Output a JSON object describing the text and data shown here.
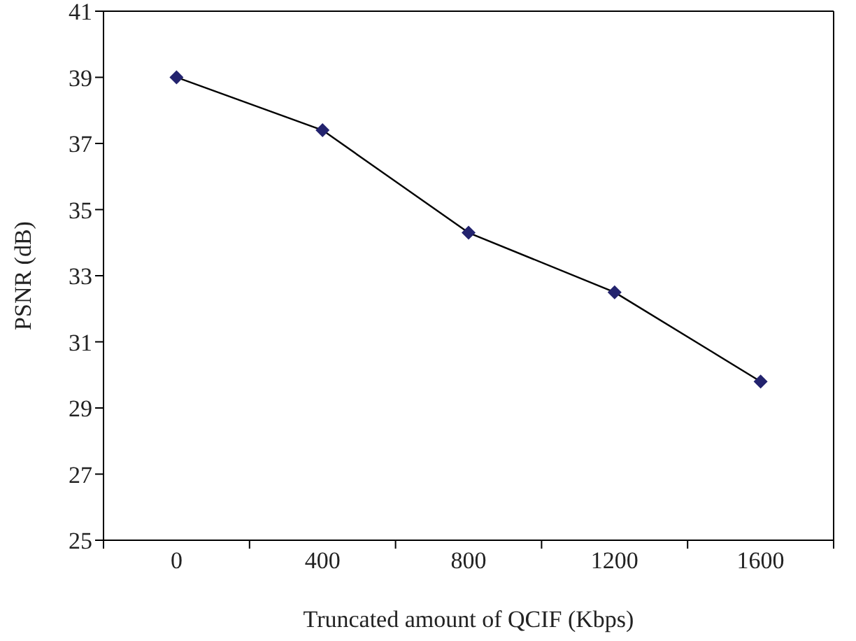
{
  "chart_data": {
    "type": "line",
    "xlabel": "Truncated amount of QCIF (Kbps)",
    "ylabel": "PSNR (dB)",
    "categories": [
      "0",
      "400",
      "800",
      "1200",
      "1600"
    ],
    "series": [
      {
        "color": "#23236e",
        "values": [
          39.0,
          37.4,
          34.3,
          32.5,
          29.8
        ]
      }
    ],
    "ylim": [
      25,
      41
    ],
    "yticks": [
      25,
      27,
      29,
      31,
      33,
      35,
      37,
      39,
      41
    ],
    "grid": false,
    "legend": false,
    "marker": "diamond",
    "line_style": "solid"
  }
}
